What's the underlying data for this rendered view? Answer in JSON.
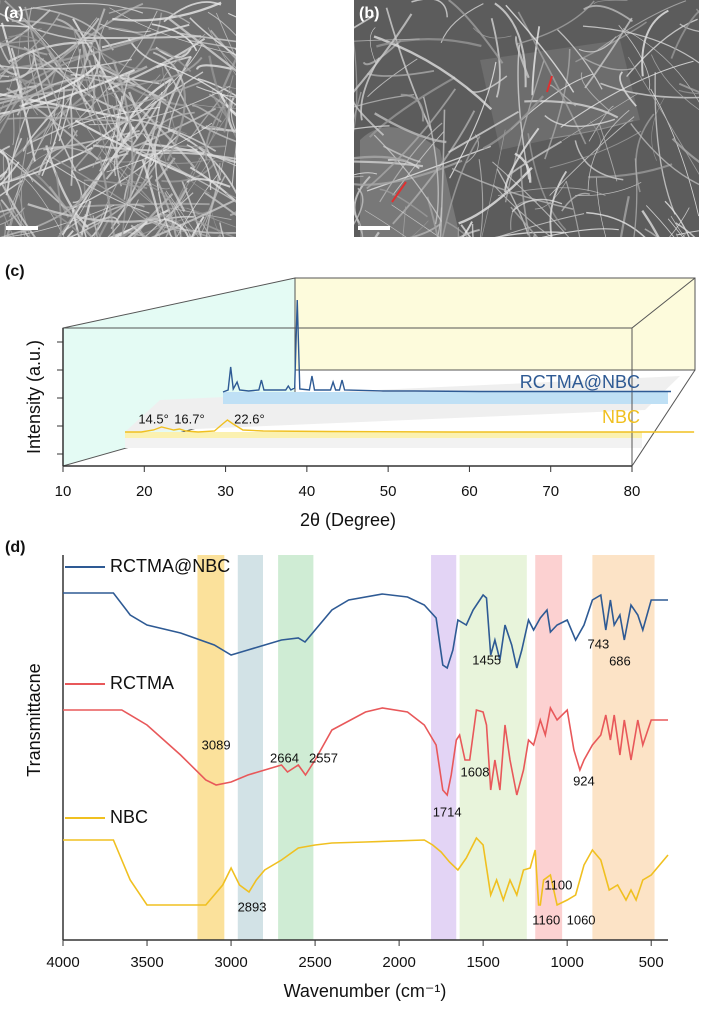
{
  "panels": {
    "a": "(a)",
    "b": "(b)",
    "c": "(c)",
    "d": "(d)"
  },
  "chart_data": [
    {
      "type": "line",
      "xlabel": "2θ (Degree)",
      "ylabel": "Intensity (a.u.)",
      "xlim": [
        10,
        80
      ],
      "xticks": [
        10,
        20,
        30,
        40,
        50,
        60,
        70,
        80
      ],
      "series": [
        {
          "name": "RCTMA@NBC",
          "color": "#2e5a94",
          "x": [
            10,
            10.8,
            11.2,
            11.6,
            12.2,
            12.6,
            14,
            15.6,
            16,
            16.4,
            19.8,
            20.2,
            20.6,
            21.2,
            21.6,
            22,
            23.5,
            23.9,
            24.3,
            26.8,
            27.2,
            27.6,
            28.2,
            28.6,
            29,
            35,
            40,
            50,
            60,
            70,
            80
          ],
          "values": [
            0,
            2,
            25,
            3,
            10,
            2,
            1,
            2,
            12,
            2,
            2,
            6,
            2,
            4,
            92,
            3,
            2,
            16,
            2,
            2,
            10,
            2,
            2,
            12,
            2,
            1,
            1,
            0.5,
            0.5,
            0.5,
            0.5
          ]
        },
        {
          "name": "NBC",
          "color": "#f0c020",
          "x": [
            10,
            12,
            13.5,
            14.5,
            15.5,
            16,
            16.7,
            17.5,
            19,
            21,
            22,
            22.6,
            23.3,
            24.5,
            27,
            35,
            50,
            80
          ],
          "values": [
            0,
            0,
            2,
            5,
            3,
            2,
            3,
            1,
            0,
            1,
            8,
            12,
            8,
            2,
            1,
            0.5,
            0,
            0
          ]
        }
      ],
      "annotations": [
        {
          "value": 14.5,
          "label": "14.5°"
        },
        {
          "value": 16.7,
          "label": "16.7°"
        },
        {
          "value": 22.6,
          "label": "22.6°"
        }
      ]
    },
    {
      "type": "line",
      "xlabel": "Wavenumber (cm⁻¹)",
      "ylabel": "Transmittacne",
      "xlim": [
        4000,
        400
      ],
      "xticks": [
        4000,
        3500,
        3000,
        2500,
        2000,
        1500,
        1000,
        500
      ],
      "bands": [
        {
          "from": 3200,
          "to": 3040,
          "color": "#f9d77a"
        },
        {
          "from": 2960,
          "to": 2810,
          "color": "#c3d8de"
        },
        {
          "from": 2720,
          "to": 2510,
          "color": "#bfe6c6"
        },
        {
          "from": 1810,
          "to": 1660,
          "color": "#d9c6f1"
        },
        {
          "from": 1640,
          "to": 1240,
          "color": "#e0f0cf"
        },
        {
          "from": 1190,
          "to": 1030,
          "color": "#fbc2c2"
        },
        {
          "from": 850,
          "to": 480,
          "color": "#fbd9b3"
        }
      ],
      "series": [
        {
          "name": "RCTMA@NBC",
          "color": "#2e5a94",
          "x": [
            4000,
            3700,
            3600,
            3500,
            3300,
            3100,
            3000,
            2900,
            2800,
            2700,
            2600,
            2560,
            2500,
            2400,
            2300,
            2100,
            1950,
            1850,
            1780,
            1740,
            1714,
            1680,
            1650,
            1600,
            1560,
            1500,
            1480,
            1455,
            1430,
            1400,
            1370,
            1330,
            1300,
            1270,
            1230,
            1200,
            1160,
            1120,
            1100,
            1060,
            1000,
            950,
            900,
            850,
            800,
            770,
            743,
            720,
            686,
            660,
            620,
            580,
            550,
            500,
            400
          ],
          "values": [
            347,
            347,
            325,
            315,
            307,
            295,
            285,
            290,
            295,
            300,
            302,
            298,
            310,
            330,
            340,
            346,
            343,
            335,
            322,
            275,
            272,
            290,
            320,
            315,
            330,
            345,
            342,
            285,
            300,
            280,
            315,
            295,
            272,
            290,
            320,
            310,
            322,
            330,
            308,
            315,
            320,
            300,
            315,
            340,
            345,
            310,
            340,
            315,
            325,
            300,
            335,
            325,
            310,
            340,
            340
          ]
        },
        {
          "name": "RCTMA",
          "color": "#e8585a",
          "x": [
            4000,
            3650,
            3500,
            3300,
            3150,
            3089,
            3000,
            2900,
            2800,
            2700,
            2664,
            2600,
            2557,
            2500,
            2400,
            2200,
            2100,
            1950,
            1850,
            1780,
            1740,
            1714,
            1690,
            1660,
            1640,
            1608,
            1580,
            1540,
            1500,
            1480,
            1455,
            1430,
            1400,
            1370,
            1340,
            1300,
            1260,
            1230,
            1200,
            1160,
            1130,
            1100,
            1060,
            1000,
            960,
            924,
            900,
            850,
            800,
            770,
            743,
            720,
            686,
            660,
            620,
            580,
            550,
            500,
            400
          ],
          "values": [
            230,
            230,
            215,
            185,
            160,
            155,
            158,
            165,
            170,
            175,
            168,
            175,
            165,
            180,
            210,
            228,
            232,
            228,
            215,
            195,
            150,
            145,
            165,
            200,
            205,
            180,
            180,
            230,
            228,
            215,
            150,
            180,
            150,
            215,
            180,
            145,
            170,
            200,
            195,
            220,
            205,
            232,
            220,
            230,
            190,
            170,
            180,
            195,
            205,
            225,
            200,
            225,
            185,
            220,
            180,
            220,
            195,
            220,
            220
          ]
        },
        {
          "name": "NBC",
          "color": "#f0c020",
          "x": [
            4000,
            3700,
            3600,
            3500,
            3300,
            3150,
            3050,
            3000,
            2950,
            2893,
            2850,
            2800,
            2700,
            2600,
            2500,
            2400,
            2200,
            1850,
            1800,
            1750,
            1700,
            1650,
            1600,
            1540,
            1500,
            1455,
            1420,
            1380,
            1340,
            1300,
            1260,
            1220,
            1190,
            1170,
            1160,
            1140,
            1100,
            1060,
            1000,
            950,
            900,
            850,
            800,
            750,
            700,
            650,
            620,
            590,
            550,
            500,
            400
          ],
          "values": [
            100,
            100,
            60,
            35,
            35,
            35,
            55,
            72,
            55,
            48,
            60,
            70,
            80,
            92,
            95,
            97,
            98,
            100,
            95,
            88,
            78,
            70,
            82,
            102,
            95,
            45,
            60,
            40,
            60,
            45,
            70,
            72,
            90,
            35,
            35,
            60,
            65,
            35,
            40,
            45,
            75,
            90,
            80,
            50,
            55,
            40,
            50,
            40,
            60,
            65,
            85
          ]
        }
      ],
      "annotations": [
        {
          "x": 3089
        },
        {
          "x": 2893
        },
        {
          "x": 2664
        },
        {
          "x": 2557
        },
        {
          "x": 1714
        },
        {
          "x": 1608
        },
        {
          "x": 1455
        },
        {
          "x": 1160
        },
        {
          "x": 1100
        },
        {
          "x": 1060
        },
        {
          "x": 924
        },
        {
          "x": 743
        },
        {
          "x": 686
        }
      ]
    }
  ]
}
